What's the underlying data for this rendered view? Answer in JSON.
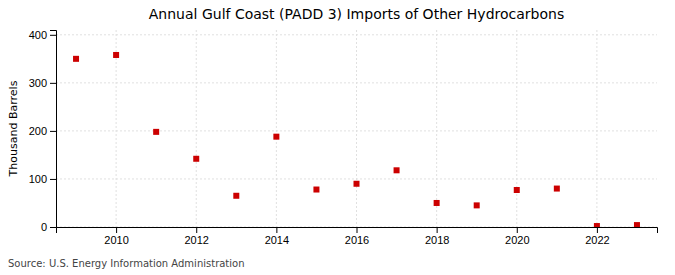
{
  "chart_data": {
    "type": "scatter",
    "title": "Annual Gulf Coast (PADD 3) Imports of Other Hydrocarbons",
    "ylabel": "Thousand Barrels",
    "annotations": [
      "Source: U.S. Energy Information Administration"
    ],
    "x": [
      2009,
      2010,
      2011,
      2012,
      2013,
      2014,
      2015,
      2016,
      2017,
      2018,
      2019,
      2020,
      2021,
      2022,
      2023
    ],
    "values": [
      350,
      358,
      198,
      142,
      65,
      188,
      78,
      90,
      118,
      50,
      45,
      77,
      80,
      2,
      4
    ],
    "color": "#cc0000",
    "marker": "square",
    "xlim": [
      2008.5,
      2023.5
    ],
    "ylim": [
      0,
      410
    ],
    "xticks": [
      2010,
      2012,
      2014,
      2016,
      2018,
      2020,
      2022
    ],
    "yticks": [
      0,
      100,
      200,
      300,
      400
    ],
    "grid": true
  }
}
